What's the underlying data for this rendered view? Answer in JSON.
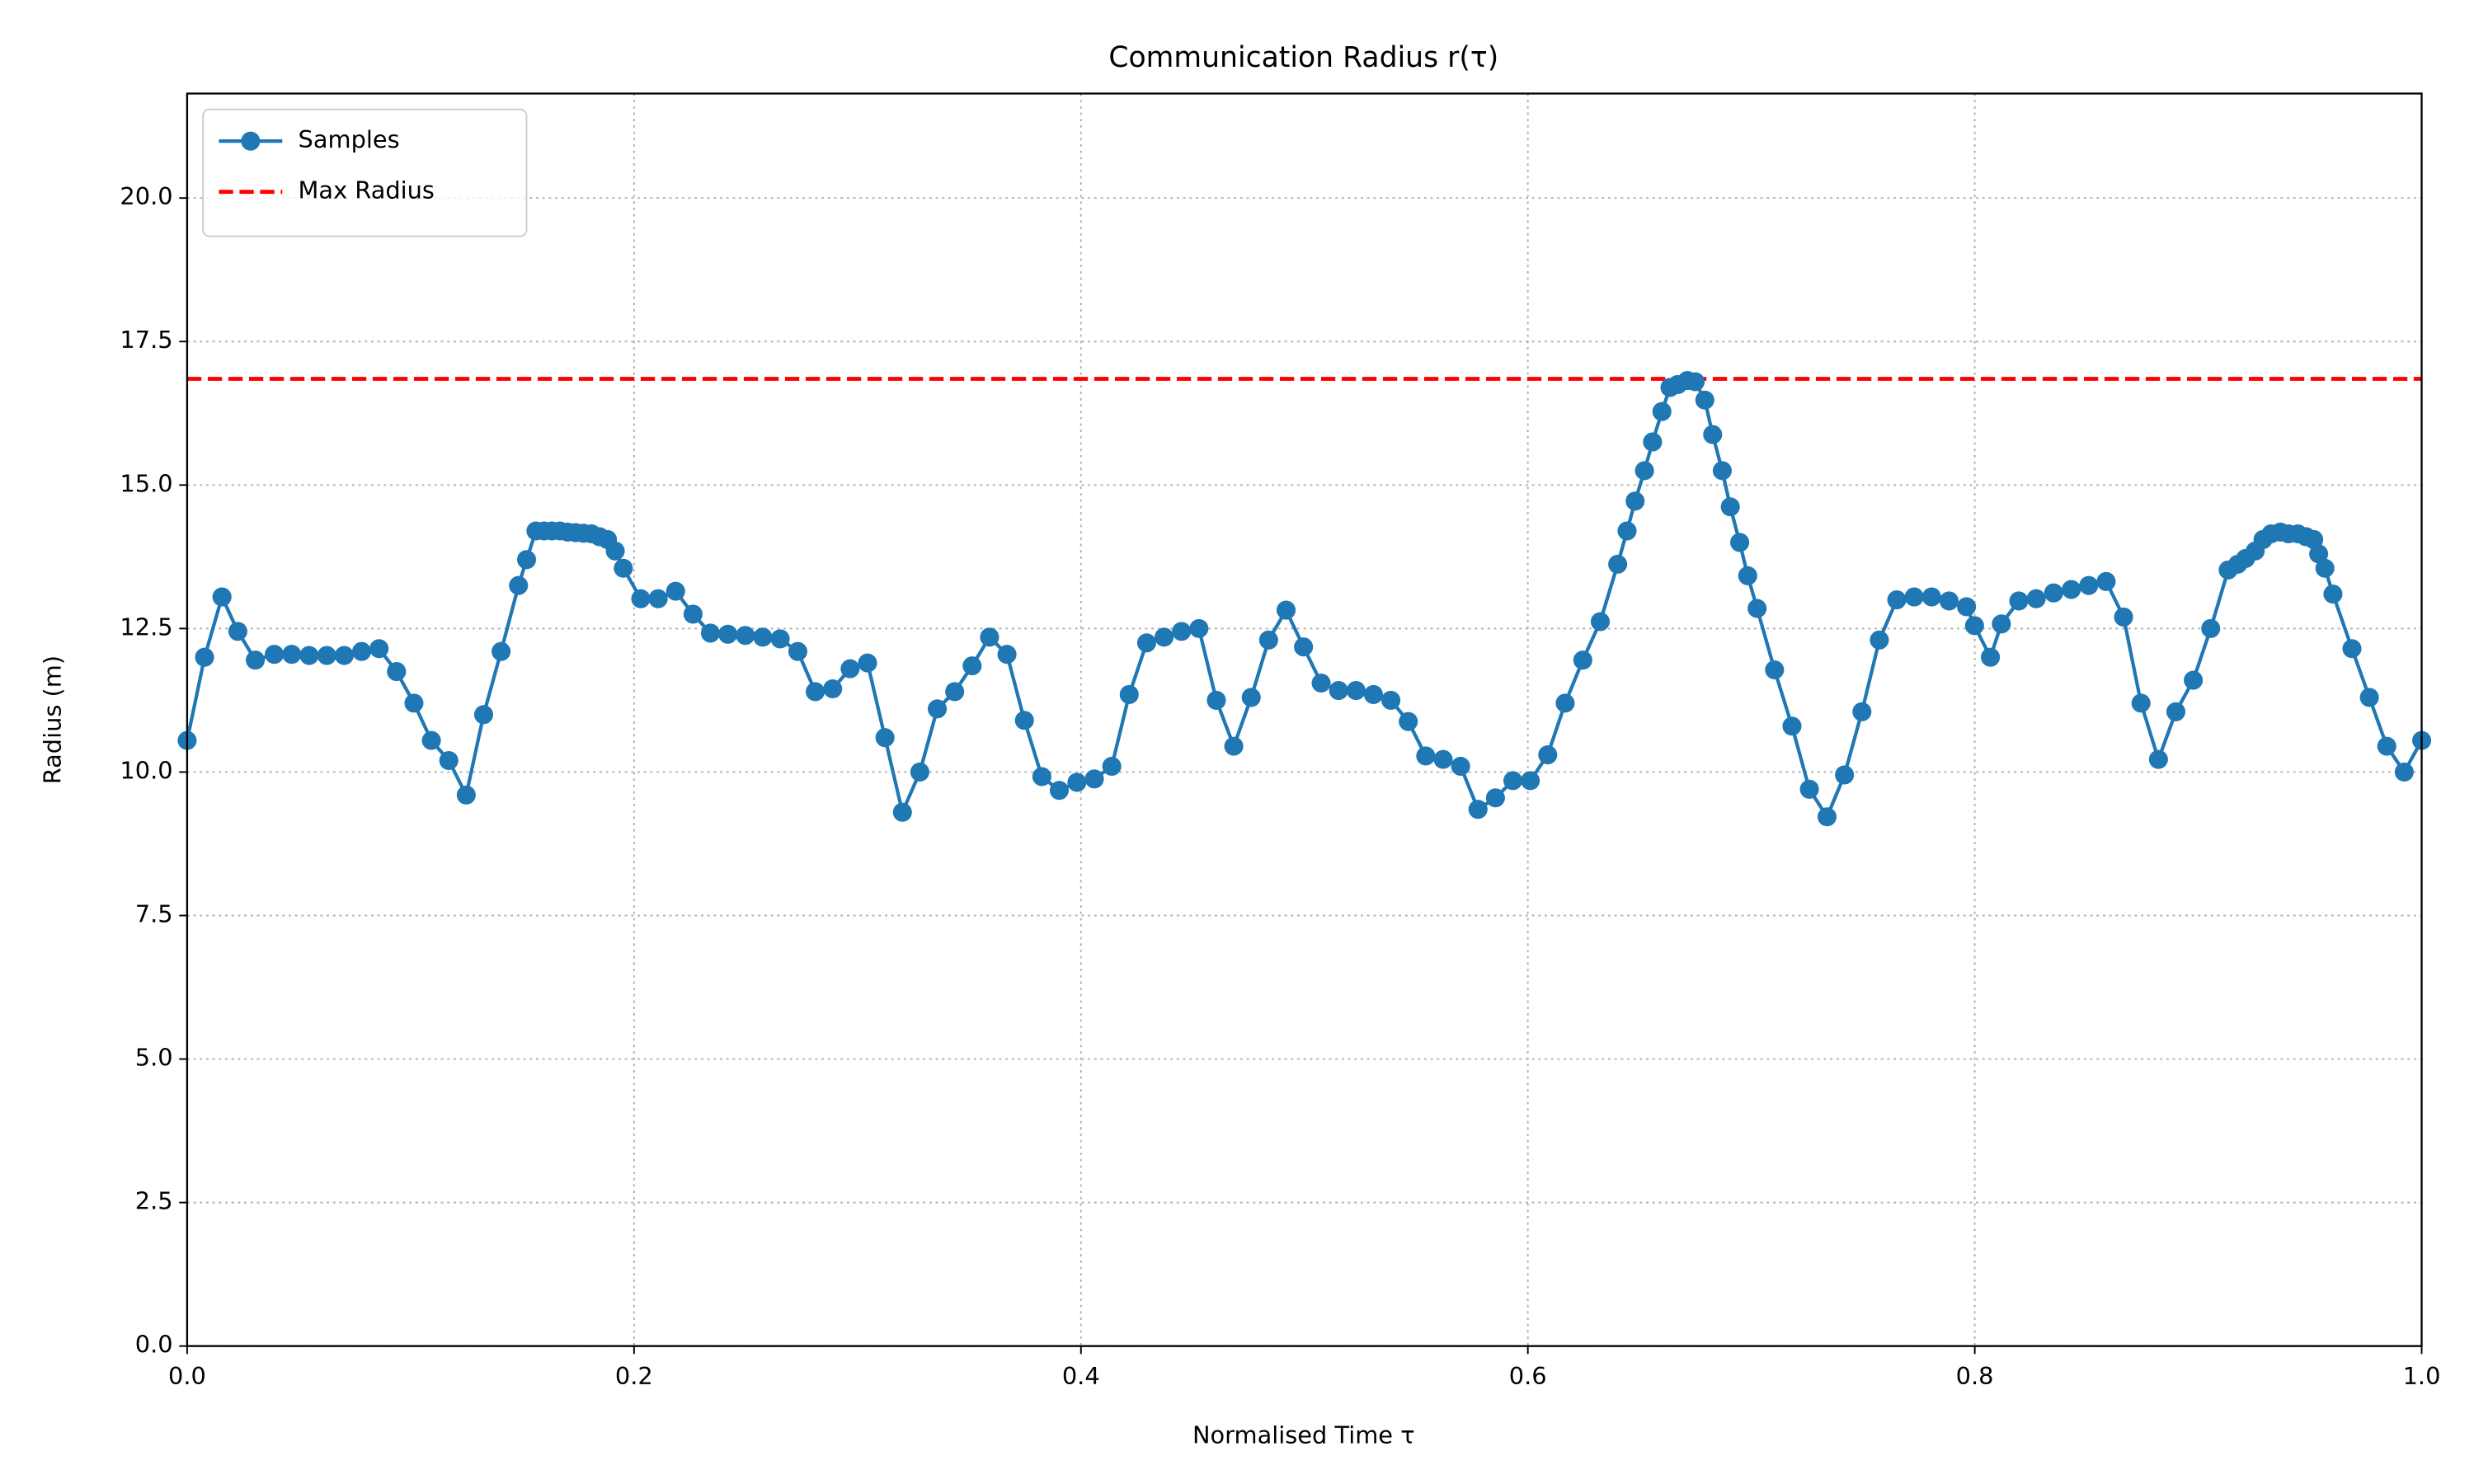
{
  "chart_data": {
    "type": "line",
    "title": "Communication Radius r(τ)",
    "x_label": "Normalised Time τ",
    "y_label": "Radius (m)",
    "xlim": [
      0,
      1
    ],
    "ylim": [
      0,
      21.82
    ],
    "xticks": [
      {
        "value": 0,
        "label": "0.0"
      },
      {
        "value": 0.2,
        "label": "0.2"
      },
      {
        "value": 0.4,
        "label": "0.4"
      },
      {
        "value": 0.6,
        "label": "0.6"
      },
      {
        "value": 0.8,
        "label": "0.8"
      },
      {
        "value": 1,
        "label": "1.0"
      }
    ],
    "yticks": [
      {
        "value": 0,
        "label": "0.0"
      },
      2.5,
      {
        "value": 5,
        "label": "5.0"
      },
      7.5,
      {
        "value": 10,
        "label": "10.0"
      },
      12.5,
      {
        "value": 15,
        "label": "15.0"
      },
      17.5,
      {
        "value": 20,
        "label": "20.0"
      }
    ],
    "grid": true,
    "legend": "upper left",
    "x": [
      0,
      0.0078,
      0.0156,
      0.0227,
      0.0305,
      0.039,
      0.0468,
      0.0546,
      0.0625,
      0.0703,
      0.0781,
      0.0859,
      0.0937,
      0.1015,
      0.1093,
      0.1171,
      0.1249,
      0.1327,
      0.1405,
      0.1483,
      0.1519,
      0.1561,
      0.1597,
      0.1632,
      0.1668,
      0.1703,
      0.1739,
      0.1774,
      0.181,
      0.1845,
      0.1881,
      0.1916,
      0.1952,
      0.203,
      0.2108,
      0.2186,
      0.2264,
      0.2342,
      0.242,
      0.2498,
      0.2576,
      0.2654,
      0.2733,
      0.2811,
      0.2889,
      0.2967,
      0.3045,
      0.3123,
      0.3201,
      0.3279,
      0.3357,
      0.3435,
      0.3513,
      0.3591,
      0.3669,
      0.3747,
      0.3825,
      0.3903,
      0.3982,
      0.406,
      0.4138,
      0.4216,
      0.4294,
      0.4372,
      0.445,
      0.4528,
      0.4606,
      0.4684,
      0.4762,
      0.484,
      0.4918,
      0.4996,
      0.5075,
      0.5153,
      0.5231,
      0.5309,
      0.5387,
      0.5465,
      0.5543,
      0.5621,
      0.5699,
      0.5777,
      0.5855,
      0.5933,
      0.6011,
      0.6089,
      0.6167,
      0.6246,
      0.6324,
      0.6402,
      0.6444,
      0.648,
      0.6522,
      0.6558,
      0.66,
      0.6636,
      0.6671,
      0.6714,
      0.6749,
      0.6792,
      0.6827,
      0.687,
      0.6906,
      0.6948,
      0.6984,
      0.7026,
      0.7104,
      0.7182,
      0.726,
      0.7339,
      0.7417,
      0.7495,
      0.7573,
      0.7651,
      0.7729,
      0.7807,
      0.7885,
      0.7963,
      0.7999,
      0.807,
      0.8119,
      0.8197,
      0.8275,
      0.8353,
      0.8432,
      0.851,
      0.8588,
      0.8666,
      0.8744,
      0.8822,
      0.89,
      0.8978,
      0.9056,
      0.9134,
      0.9177,
      0.9212,
      0.9255,
      0.929,
      0.9326,
      0.9368,
      0.9404,
      0.9446,
      0.9482,
      0.9517,
      0.9539,
      0.9567,
      0.9603,
      0.9688,
      0.9766,
      0.9844,
      0.9922,
      1.0
    ],
    "series": [
      {
        "name": "Samples",
        "color": "#1f77b4",
        "values": [
          10.55,
          12.0,
          13.05,
          12.45,
          11.95,
          12.05,
          12.05,
          12.03,
          12.03,
          12.03,
          12.1,
          12.15,
          11.75,
          11.2,
          10.55,
          10.2,
          9.6,
          11.0,
          12.1,
          13.25,
          13.7,
          14.2,
          14.2,
          14.2,
          14.2,
          14.18,
          14.17,
          14.16,
          14.15,
          14.1,
          14.05,
          13.85,
          13.55,
          13.02,
          13.02,
          13.15,
          12.75,
          12.42,
          12.4,
          12.38,
          12.35,
          12.32,
          12.1,
          11.4,
          11.45,
          11.8,
          11.9,
          10.6,
          9.3,
          10.0,
          11.1,
          11.4,
          11.85,
          12.35,
          12.05,
          10.9,
          9.92,
          9.68,
          9.82,
          9.88,
          10.1,
          11.35,
          12.25,
          12.35,
          12.45,
          12.5,
          11.25,
          10.45,
          11.3,
          12.3,
          12.82,
          12.18,
          11.55,
          11.42,
          11.42,
          11.35,
          11.25,
          10.88,
          10.28,
          10.22,
          10.1,
          9.35,
          9.55,
          9.85,
          9.85,
          10.3,
          11.2,
          11.95,
          12.62,
          13.62,
          14.2,
          14.72,
          15.25,
          15.75,
          16.28,
          16.7,
          16.75,
          16.82,
          16.8,
          16.48,
          15.88,
          15.25,
          14.62,
          14.0,
          13.42,
          12.85,
          11.78,
          10.8,
          9.7,
          9.22,
          9.95,
          11.05,
          12.3,
          13.0,
          13.05,
          13.05,
          12.98,
          12.88,
          12.55,
          12.0,
          12.58,
          12.98,
          13.02,
          13.12,
          13.18,
          13.25,
          13.32,
          12.7,
          11.2,
          10.22,
          11.05,
          11.6,
          12.5,
          13.52,
          13.62,
          13.72,
          13.85,
          14.05,
          14.15,
          14.18,
          14.15,
          14.15,
          14.1,
          14.05,
          13.8,
          13.55,
          13.1,
          12.15,
          11.3,
          10.45,
          10.0,
          10.55
        ]
      }
    ],
    "reference_lines": [
      {
        "name": "Max Radius",
        "value": 16.85,
        "color": "#ff0000"
      }
    ]
  }
}
